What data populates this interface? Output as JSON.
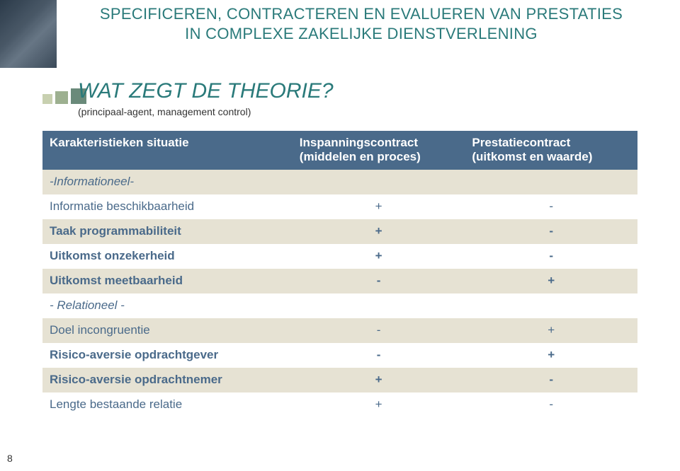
{
  "colors": {
    "title": "#2a7a7a",
    "section_title": "#2a7a7a",
    "subtitle": "#333333",
    "header_bg": "#4a6a8a",
    "header_text": "#ffffff",
    "row_alt_bg": "#e6e2d3",
    "row_bg": "#ffffff",
    "row_text": "#4a6a8a",
    "page_num": "#333333"
  },
  "page_number": "8",
  "slide_title_line1": "SPECIFICEREN, CONTRACTEREN EN EVALUEREN VAN PRESTATIES",
  "slide_title_line2": "IN COMPLEXE ZAKELIJKE DIENSTVERLENING",
  "section_title": "WAT ZEGT DE THEORIE?",
  "subtitle_small": "(principaal-agent, management control)",
  "table": {
    "head": {
      "c1": "Karakteristieken situatie",
      "c2a": "Inspanningscontract",
      "c2b": "(middelen en proces)",
      "c3a": "Prestatiecontract",
      "c3b": "(uitkomst en waarde)"
    },
    "rows": [
      {
        "label": "-Informationeel-",
        "v1": "",
        "v2": "",
        "italic": true,
        "bold": false
      },
      {
        "label": "Informatie beschikbaarheid",
        "v1": "+",
        "v2": "-",
        "italic": false,
        "bold": false
      },
      {
        "label": "Taak programmabiliteit",
        "v1": "+",
        "v2": "-",
        "italic": false,
        "bold": true
      },
      {
        "label": "Uitkomst onzekerheid",
        "v1": "+",
        "v2": "-",
        "italic": false,
        "bold": true
      },
      {
        "label": "Uitkomst meetbaarheid",
        "v1": "-",
        "v2": "+",
        "italic": false,
        "bold": true
      },
      {
        "label": "- Relationeel -",
        "v1": "",
        "v2": "",
        "italic": true,
        "bold": false
      },
      {
        "label": "Doel incongruentie",
        "v1": "-",
        "v2": "+",
        "italic": false,
        "bold": false
      },
      {
        "label": "Risico-aversie opdrachtgever",
        "v1": "-",
        "v2": "+",
        "italic": false,
        "bold": true
      },
      {
        "label": "Risico-aversie opdrachtnemer",
        "v1": "+",
        "v2": "-",
        "italic": false,
        "bold": true
      },
      {
        "label": "Lengte bestaande relatie",
        "v1": "+",
        "v2": "-",
        "italic": false,
        "bold": false
      }
    ]
  }
}
